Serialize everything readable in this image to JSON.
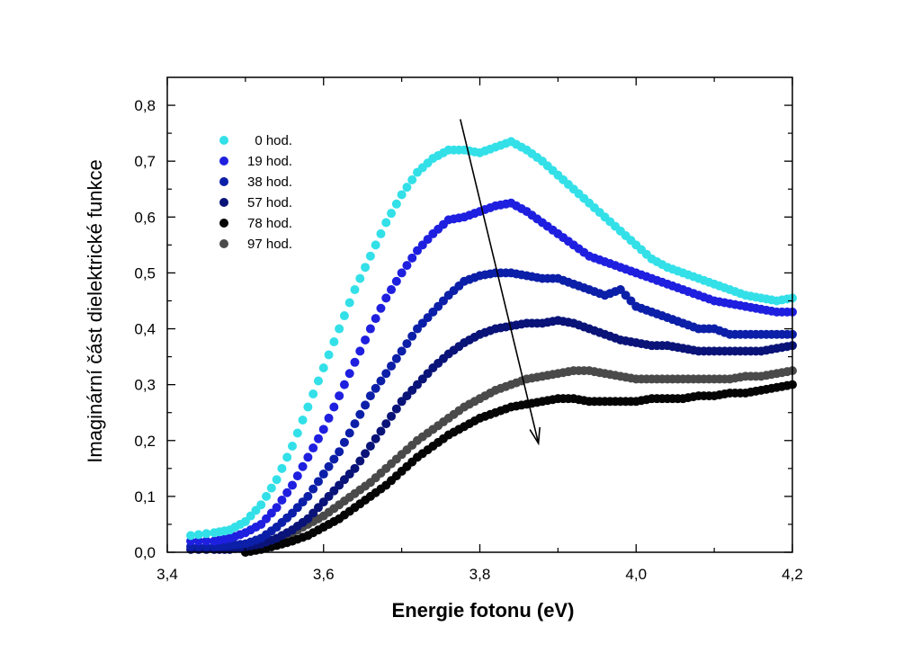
{
  "chart_data": {
    "type": "scatter",
    "title": "",
    "xlabel": "Energie fotonu (eV)",
    "ylabel": "Imaginární část dielektrické funkce",
    "xlim": [
      3.4,
      4.2
    ],
    "ylim": [
      0.0,
      0.85
    ],
    "xticks": [
      3.4,
      3.6,
      3.8,
      4.0,
      4.2
    ],
    "xtick_labels": [
      "3,4",
      "3,6",
      "3,8",
      "4,0",
      "4,2"
    ],
    "yticks": [
      0.0,
      0.1,
      0.2,
      0.3,
      0.4,
      0.5,
      0.6,
      0.7,
      0.8
    ],
    "ytick_labels": [
      "0,0",
      "0,1",
      "0,2",
      "0,3",
      "0,4",
      "0,5",
      "0,6",
      "0,7",
      "0,8"
    ],
    "grid": false,
    "legend_position": "top-left",
    "annotation": {
      "type": "arrow",
      "from": [
        3.775,
        0.775
      ],
      "to": [
        3.875,
        0.195
      ]
    },
    "series": [
      {
        "name": "0 hod.",
        "color": "#33e0e8",
        "x": [
          3.43,
          3.46,
          3.48,
          3.5,
          3.52,
          3.54,
          3.56,
          3.58,
          3.6,
          3.62,
          3.64,
          3.66,
          3.68,
          3.7,
          3.72,
          3.74,
          3.76,
          3.78,
          3.8,
          3.82,
          3.84,
          3.86,
          3.88,
          3.9,
          3.92,
          3.94,
          3.96,
          3.98,
          4.0,
          4.02,
          4.04,
          4.06,
          4.08,
          4.1,
          4.12,
          4.14,
          4.16,
          4.18,
          4.2
        ],
        "y": [
          0.03,
          0.035,
          0.04,
          0.055,
          0.085,
          0.13,
          0.19,
          0.26,
          0.33,
          0.4,
          0.47,
          0.53,
          0.59,
          0.64,
          0.68,
          0.705,
          0.72,
          0.72,
          0.715,
          0.725,
          0.735,
          0.72,
          0.7,
          0.675,
          0.65,
          0.625,
          0.6,
          0.575,
          0.55,
          0.525,
          0.51,
          0.5,
          0.49,
          0.48,
          0.47,
          0.46,
          0.455,
          0.45,
          0.455
        ]
      },
      {
        "name": "19 hod.",
        "color": "#1f1fe0",
        "x": [
          3.43,
          3.46,
          3.48,
          3.5,
          3.52,
          3.54,
          3.56,
          3.58,
          3.6,
          3.62,
          3.64,
          3.66,
          3.68,
          3.7,
          3.72,
          3.74,
          3.76,
          3.78,
          3.8,
          3.82,
          3.84,
          3.86,
          3.88,
          3.9,
          3.92,
          3.94,
          3.96,
          3.98,
          4.0,
          4.02,
          4.04,
          4.06,
          4.08,
          4.1,
          4.12,
          4.14,
          4.16,
          4.18,
          4.2
        ],
        "y": [
          0.02,
          0.02,
          0.025,
          0.035,
          0.05,
          0.08,
          0.12,
          0.17,
          0.22,
          0.28,
          0.34,
          0.4,
          0.455,
          0.5,
          0.54,
          0.57,
          0.595,
          0.6,
          0.61,
          0.62,
          0.625,
          0.61,
          0.59,
          0.57,
          0.55,
          0.53,
          0.52,
          0.51,
          0.5,
          0.49,
          0.48,
          0.47,
          0.46,
          0.45,
          0.445,
          0.44,
          0.435,
          0.43,
          0.43
        ]
      },
      {
        "name": "38 hod.",
        "color": "#0c1fa8",
        "x": [
          3.43,
          3.46,
          3.48,
          3.5,
          3.52,
          3.54,
          3.56,
          3.58,
          3.6,
          3.62,
          3.64,
          3.66,
          3.68,
          3.7,
          3.72,
          3.74,
          3.76,
          3.78,
          3.8,
          3.82,
          3.84,
          3.86,
          3.88,
          3.9,
          3.92,
          3.94,
          3.96,
          3.98,
          4.0,
          4.02,
          4.04,
          4.06,
          4.08,
          4.1,
          4.12,
          4.14,
          4.16,
          4.18,
          4.2
        ],
        "y": [
          0.01,
          0.01,
          0.012,
          0.015,
          0.025,
          0.045,
          0.07,
          0.1,
          0.14,
          0.18,
          0.23,
          0.28,
          0.32,
          0.36,
          0.4,
          0.43,
          0.46,
          0.485,
          0.495,
          0.5,
          0.5,
          0.495,
          0.49,
          0.49,
          0.48,
          0.47,
          0.46,
          0.47,
          0.44,
          0.43,
          0.42,
          0.41,
          0.4,
          0.4,
          0.39,
          0.39,
          0.39,
          0.39,
          0.39
        ]
      },
      {
        "name": "57 hod.",
        "color": "#0a1378",
        "x": [
          3.43,
          3.46,
          3.48,
          3.5,
          3.52,
          3.54,
          3.56,
          3.58,
          3.6,
          3.62,
          3.64,
          3.66,
          3.68,
          3.7,
          3.72,
          3.74,
          3.76,
          3.78,
          3.8,
          3.82,
          3.84,
          3.86,
          3.88,
          3.9,
          3.92,
          3.94,
          3.96,
          3.98,
          4.0,
          4.02,
          4.04,
          4.06,
          4.08,
          4.1,
          4.12,
          4.14,
          4.16,
          4.18,
          4.2
        ],
        "y": [
          0.005,
          0.005,
          0.005,
          0.01,
          0.015,
          0.025,
          0.04,
          0.06,
          0.09,
          0.12,
          0.15,
          0.19,
          0.23,
          0.27,
          0.3,
          0.33,
          0.355,
          0.375,
          0.39,
          0.4,
          0.405,
          0.41,
          0.41,
          0.415,
          0.41,
          0.4,
          0.39,
          0.38,
          0.375,
          0.37,
          0.37,
          0.365,
          0.36,
          0.36,
          0.36,
          0.36,
          0.36,
          0.365,
          0.37
        ]
      },
      {
        "name": "78 hod.",
        "color": "#050505",
        "x": [
          3.5,
          3.52,
          3.54,
          3.56,
          3.58,
          3.6,
          3.62,
          3.64,
          3.66,
          3.68,
          3.7,
          3.72,
          3.74,
          3.76,
          3.78,
          3.8,
          3.82,
          3.84,
          3.86,
          3.88,
          3.9,
          3.92,
          3.94,
          3.96,
          3.98,
          4.0,
          4.02,
          4.04,
          4.06,
          4.08,
          4.1,
          4.12,
          4.14,
          4.16,
          4.18,
          4.2
        ],
        "y": [
          0.0,
          0.005,
          0.012,
          0.02,
          0.03,
          0.045,
          0.06,
          0.08,
          0.1,
          0.12,
          0.145,
          0.17,
          0.19,
          0.21,
          0.225,
          0.24,
          0.25,
          0.26,
          0.265,
          0.27,
          0.275,
          0.275,
          0.27,
          0.27,
          0.27,
          0.27,
          0.275,
          0.275,
          0.275,
          0.28,
          0.28,
          0.285,
          0.285,
          0.29,
          0.295,
          0.3
        ]
      },
      {
        "name": "97 hod.",
        "color": "#4a4a4a",
        "x": [
          3.5,
          3.52,
          3.54,
          3.56,
          3.58,
          3.6,
          3.62,
          3.64,
          3.66,
          3.68,
          3.7,
          3.72,
          3.74,
          3.76,
          3.78,
          3.8,
          3.82,
          3.84,
          3.86,
          3.88,
          3.9,
          3.92,
          3.94,
          3.96,
          3.98,
          4.0,
          4.02,
          4.04,
          4.06,
          4.08,
          4.1,
          4.12,
          4.14,
          4.16,
          4.18,
          4.2
        ],
        "y": [
          0.005,
          0.01,
          0.02,
          0.035,
          0.05,
          0.065,
          0.085,
          0.105,
          0.125,
          0.15,
          0.175,
          0.2,
          0.22,
          0.24,
          0.26,
          0.275,
          0.29,
          0.3,
          0.31,
          0.315,
          0.32,
          0.325,
          0.325,
          0.32,
          0.315,
          0.31,
          0.31,
          0.31,
          0.31,
          0.31,
          0.31,
          0.31,
          0.315,
          0.315,
          0.32,
          0.325
        ]
      }
    ]
  }
}
